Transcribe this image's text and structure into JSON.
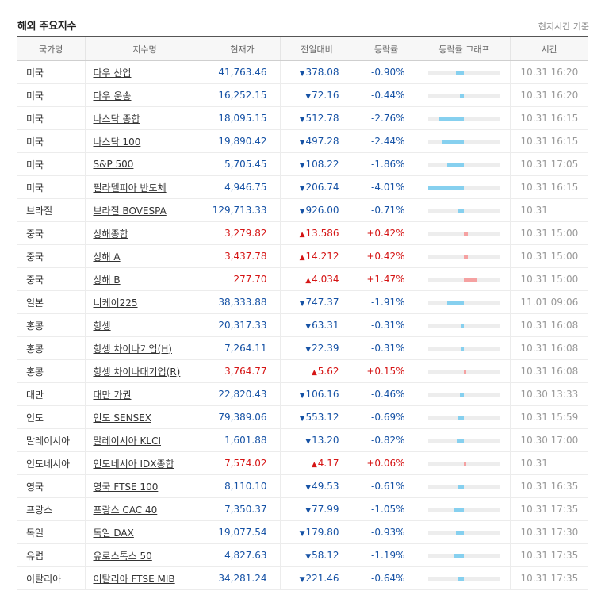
{
  "title": "해외 주요지수",
  "note": "현지시간 기준",
  "colors": {
    "down": "#1652a5",
    "up": "#d51515",
    "bar_down": "#86d0ef",
    "bar_up": "#f5a1a1"
  },
  "headers": [
    "국가명",
    "지수명",
    "현재가",
    "전일대비",
    "등락률",
    "등락률 그래프",
    "시간"
  ],
  "rows": [
    {
      "country": "미국",
      "name": "다우 산업",
      "price": "41,763.46",
      "change": "378.08",
      "rate": "-0.90%",
      "rate_pct": -0.9,
      "time": "10.31 16:20",
      "dir": "down"
    },
    {
      "country": "미국",
      "name": "다우 운송",
      "price": "16,252.15",
      "change": "72.16",
      "rate": "-0.44%",
      "rate_pct": -0.44,
      "time": "10.31 16:20",
      "dir": "down"
    },
    {
      "country": "미국",
      "name": "나스닥 종합",
      "price": "18,095.15",
      "change": "512.78",
      "rate": "-2.76%",
      "rate_pct": -2.76,
      "time": "10.31 16:15",
      "dir": "down"
    },
    {
      "country": "미국",
      "name": "나스닥 100",
      "price": "19,890.42",
      "change": "497.28",
      "rate": "-2.44%",
      "rate_pct": -2.44,
      "time": "10.31 16:15",
      "dir": "down"
    },
    {
      "country": "미국",
      "name": "S&P 500",
      "price": "5,705.45",
      "change": "108.22",
      "rate": "-1.86%",
      "rate_pct": -1.86,
      "time": "10.31 17:05",
      "dir": "down"
    },
    {
      "country": "미국",
      "name": "필라델피아 반도체",
      "price": "4,946.75",
      "change": "206.74",
      "rate": "-4.01%",
      "rate_pct": -4.01,
      "time": "10.31 16:15",
      "dir": "down"
    },
    {
      "country": "브라질",
      "name": "브라질 BOVESPA",
      "price": "129,713.33",
      "change": "926.00",
      "rate": "-0.71%",
      "rate_pct": -0.71,
      "time": "10.31",
      "dir": "down"
    },
    {
      "country": "중국",
      "name": "상해종합",
      "price": "3,279.82",
      "change": "13.586",
      "rate": "+0.42%",
      "rate_pct": 0.42,
      "time": "10.31 15:00",
      "dir": "up",
      "group_start": true
    },
    {
      "country": "중국",
      "name": "상해 A",
      "price": "3,437.78",
      "change": "14.212",
      "rate": "+0.42%",
      "rate_pct": 0.42,
      "time": "10.31 15:00",
      "dir": "up"
    },
    {
      "country": "중국",
      "name": "상해 B",
      "price": "277.70",
      "change": "4.034",
      "rate": "+1.47%",
      "rate_pct": 1.47,
      "time": "10.31 15:00",
      "dir": "up"
    },
    {
      "country": "일본",
      "name": "니케이225",
      "price": "38,333.88",
      "change": "747.37",
      "rate": "-1.91%",
      "rate_pct": -1.91,
      "time": "11.01 09:06",
      "dir": "down"
    },
    {
      "country": "홍콩",
      "name": "항셍",
      "price": "20,317.33",
      "change": "63.31",
      "rate": "-0.31%",
      "rate_pct": -0.31,
      "time": "10.31 16:08",
      "dir": "down"
    },
    {
      "country": "홍콩",
      "name": "항셍 차이나기업(H)",
      "price": "7,264.11",
      "change": "22.39",
      "rate": "-0.31%",
      "rate_pct": -0.31,
      "time": "10.31 16:08",
      "dir": "down"
    },
    {
      "country": "홍콩",
      "name": "항셍 차이나대기업(R)",
      "price": "3,764.77",
      "change": "5.62",
      "rate": "+0.15%",
      "rate_pct": 0.15,
      "time": "10.31 16:08",
      "dir": "up"
    },
    {
      "country": "대만",
      "name": "대만 가권",
      "price": "22,820.43",
      "change": "106.16",
      "rate": "-0.46%",
      "rate_pct": -0.46,
      "time": "10.30 13:33",
      "dir": "down"
    },
    {
      "country": "인도",
      "name": "인도 SENSEX",
      "price": "79,389.06",
      "change": "553.12",
      "rate": "-0.69%",
      "rate_pct": -0.69,
      "time": "10.31 15:59",
      "dir": "down"
    },
    {
      "country": "말레이시아",
      "name": "말레이시아 KLCI",
      "price": "1,601.88",
      "change": "13.20",
      "rate": "-0.82%",
      "rate_pct": -0.82,
      "time": "10.30 17:00",
      "dir": "down"
    },
    {
      "country": "인도네시아",
      "name": "인도네시아 IDX종합",
      "price": "7,574.02",
      "change": "4.17",
      "rate": "+0.06%",
      "rate_pct": 0.06,
      "time": "10.31",
      "dir": "up"
    },
    {
      "country": "영국",
      "name": "영국 FTSE 100",
      "price": "8,110.10",
      "change": "49.53",
      "rate": "-0.61%",
      "rate_pct": -0.61,
      "time": "10.31 16:35",
      "dir": "down",
      "group_start": true
    },
    {
      "country": "프랑스",
      "name": "프랑스 CAC 40",
      "price": "7,350.37",
      "change": "77.99",
      "rate": "-1.05%",
      "rate_pct": -1.05,
      "time": "10.31 17:35",
      "dir": "down"
    },
    {
      "country": "독일",
      "name": "독일 DAX",
      "price": "19,077.54",
      "change": "179.80",
      "rate": "-0.93%",
      "rate_pct": -0.93,
      "time": "10.31 17:30",
      "dir": "down"
    },
    {
      "country": "유럽",
      "name": "유로스톡스 50",
      "price": "4,827.63",
      "change": "58.12",
      "rate": "-1.19%",
      "rate_pct": -1.19,
      "time": "10.31 17:35",
      "dir": "down"
    },
    {
      "country": "이탈리아",
      "name": "이탈리아 FTSE MIB",
      "price": "34,281.24",
      "change": "221.46",
      "rate": "-0.64%",
      "rate_pct": -0.64,
      "time": "10.31 17:35",
      "dir": "down"
    }
  ]
}
